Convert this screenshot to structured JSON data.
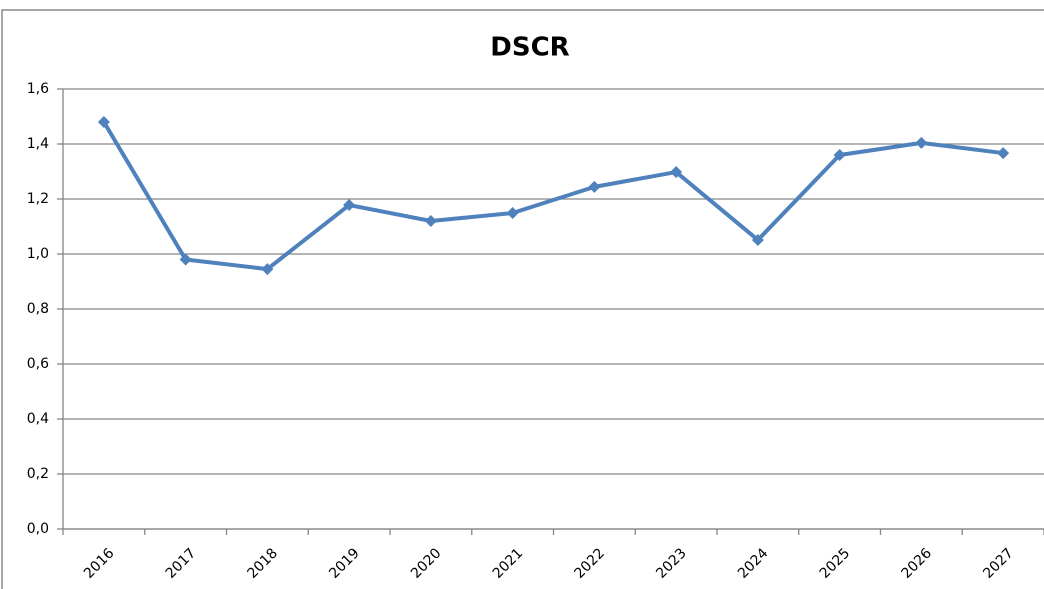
{
  "chart_data": {
    "type": "line",
    "title": "DSCR",
    "categories": [
      "2016",
      "2017",
      "2018",
      "2019",
      "2020",
      "2021",
      "2022",
      "2023",
      "2024",
      "2025",
      "2026",
      "2027"
    ],
    "series": [
      {
        "name": "DSCR",
        "color": "#4f81bd",
        "values": [
          1.48,
          0.98,
          0.945,
          1.178,
          1.12,
          1.149,
          1.244,
          1.298,
          1.051,
          1.36,
          1.404,
          1.367
        ]
      }
    ],
    "ylim": [
      0,
      1.6
    ],
    "yticks": [
      {
        "value": 0,
        "label": "0,0"
      },
      {
        "value": 0.2,
        "label": "0,2"
      },
      {
        "value": 0.4,
        "label": "0,4"
      },
      {
        "value": 0.6,
        "label": "0,6"
      },
      {
        "value": 0.8,
        "label": "0,8"
      },
      {
        "value": 1.0,
        "label": "1,0"
      },
      {
        "value": 1.2,
        "label": "1,2"
      },
      {
        "value": 1.4,
        "label": "1,4"
      },
      {
        "value": 1.6,
        "label": "1,6"
      }
    ],
    "grid": true
  }
}
